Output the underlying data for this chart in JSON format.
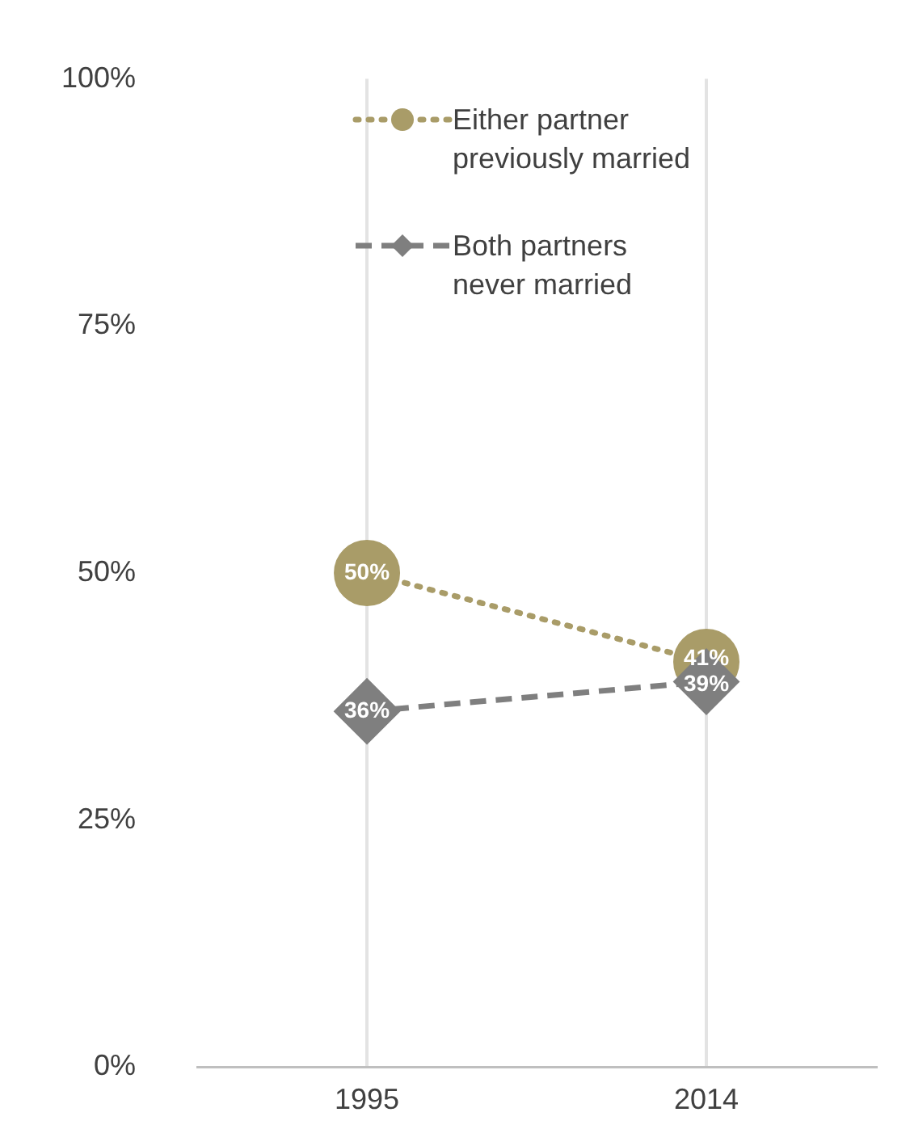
{
  "chart_data": {
    "type": "line",
    "categories": [
      "1995",
      "2014"
    ],
    "series": [
      {
        "name": "Either partner previously married",
        "color": "#a99c68",
        "values": [
          50,
          41
        ],
        "value_labels": [
          "50%",
          "41%"
        ],
        "marker": "circle",
        "line_style": "dotted"
      },
      {
        "name": "Both partners never married",
        "color": "#7f7f7f",
        "values": [
          36,
          39
        ],
        "value_labels": [
          "36%",
          "39%"
        ],
        "marker": "diamond",
        "line_style": "dashed"
      }
    ],
    "ylim": [
      0,
      100
    ],
    "yticks": [
      {
        "value": 0,
        "label": "0%"
      },
      {
        "value": 25,
        "label": "25%"
      },
      {
        "value": 50,
        "label": "50%"
      },
      {
        "value": 75,
        "label": "75%"
      },
      {
        "value": 100,
        "label": "100%"
      }
    ],
    "grid": "x",
    "legend": "top"
  }
}
